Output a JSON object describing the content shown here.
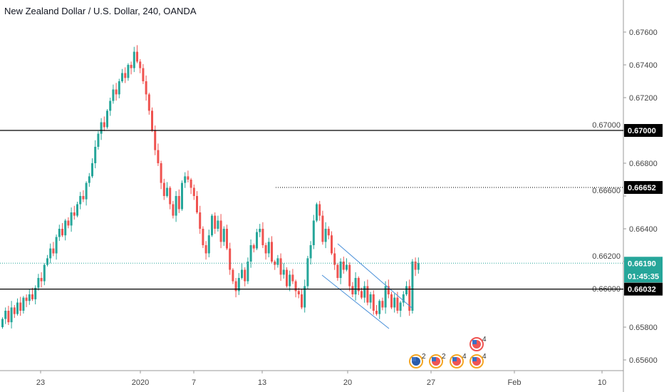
{
  "title": "New Zealand Dollar / U.S. Dollar, 240, OANDA",
  "chart_data": {
    "type": "candlestick",
    "symbol": "NZDUSD",
    "interval": "240",
    "ylim": [
      0.6556,
      0.6778
    ],
    "y_ticks": [
      "0.67600",
      "0.67400",
      "0.67200",
      "0.67000",
      "0.66800",
      "0.66600",
      "0.66400",
      "0.66200",
      "0.66000",
      "0.65800",
      "0.65600"
    ],
    "y_tick_values": [
      0.676,
      0.674,
      0.672,
      0.67,
      0.668,
      0.666,
      0.664,
      0.662,
      0.66,
      0.658,
      0.656
    ],
    "x_ticks": [
      "23",
      "2020",
      "7",
      "13",
      "20",
      "27",
      "Feb",
      "10"
    ],
    "first_open": 0.658,
    "closes": [
      0.6585,
      0.659,
      0.6583,
      0.6592,
      0.6588,
      0.6595,
      0.659,
      0.6598,
      0.6596,
      0.66,
      0.6597,
      0.6604,
      0.661,
      0.6608,
      0.6618,
      0.6622,
      0.6628,
      0.6625,
      0.6635,
      0.664,
      0.6636,
      0.6645,
      0.6642,
      0.665,
      0.6648,
      0.6655,
      0.666,
      0.6658,
      0.6668,
      0.6672,
      0.668,
      0.669,
      0.6698,
      0.6705,
      0.6702,
      0.6712,
      0.6718,
      0.6725,
      0.6722,
      0.673,
      0.6735,
      0.6732,
      0.674,
      0.6738,
      0.6748,
      0.6742,
      0.6738,
      0.673,
      0.6722,
      0.6712,
      0.67,
      0.6688,
      0.668,
      0.6668,
      0.666,
      0.6665,
      0.6655,
      0.6648,
      0.666,
      0.6652,
      0.6668,
      0.6672,
      0.667,
      0.6665,
      0.666,
      0.665,
      0.664,
      0.663,
      0.6625,
      0.6636,
      0.6648,
      0.664,
      0.6645,
      0.6632,
      0.664,
      0.6628,
      0.6615,
      0.6608,
      0.6602,
      0.661,
      0.6615,
      0.6608,
      0.662,
      0.663,
      0.6628,
      0.6638,
      0.664,
      0.663,
      0.6625,
      0.6632,
      0.662,
      0.6618,
      0.6622,
      0.6612,
      0.6615,
      0.6605,
      0.6612,
      0.6608,
      0.6602,
      0.66,
      0.6592,
      0.6605,
      0.6622,
      0.663,
      0.6645,
      0.6655,
      0.6648,
      0.6632,
      0.664,
      0.6636,
      0.6625,
      0.6618,
      0.661,
      0.662,
      0.6615,
      0.6618,
      0.6605,
      0.66,
      0.661,
      0.6602,
      0.6598,
      0.6605,
      0.6595,
      0.66,
      0.659,
      0.6588,
      0.6596,
      0.6592,
      0.6605,
      0.66,
      0.6592,
      0.6598,
      0.659,
      0.6595,
      0.66,
      0.6605,
      0.659,
      0.662,
      0.6615,
      0.6619
    ],
    "horizontal_lines": [
      {
        "label": "0.67000",
        "value": 0.67,
        "style": "solid"
      },
      {
        "label": "0.66652",
        "value": 0.66652,
        "style": "dotted"
      },
      {
        "label": "0.66032",
        "value": 0.66032,
        "style": "solid"
      }
    ],
    "last_price": {
      "label": "0.66190",
      "value": 0.6619,
      "countdown": "01:45:35"
    },
    "colors": {
      "up": "#26a69a",
      "down": "#ef5350",
      "channel": "#4a90d9",
      "last": "#26a69a"
    }
  },
  "events": [
    "2",
    "2",
    "4",
    "4",
    "4"
  ]
}
